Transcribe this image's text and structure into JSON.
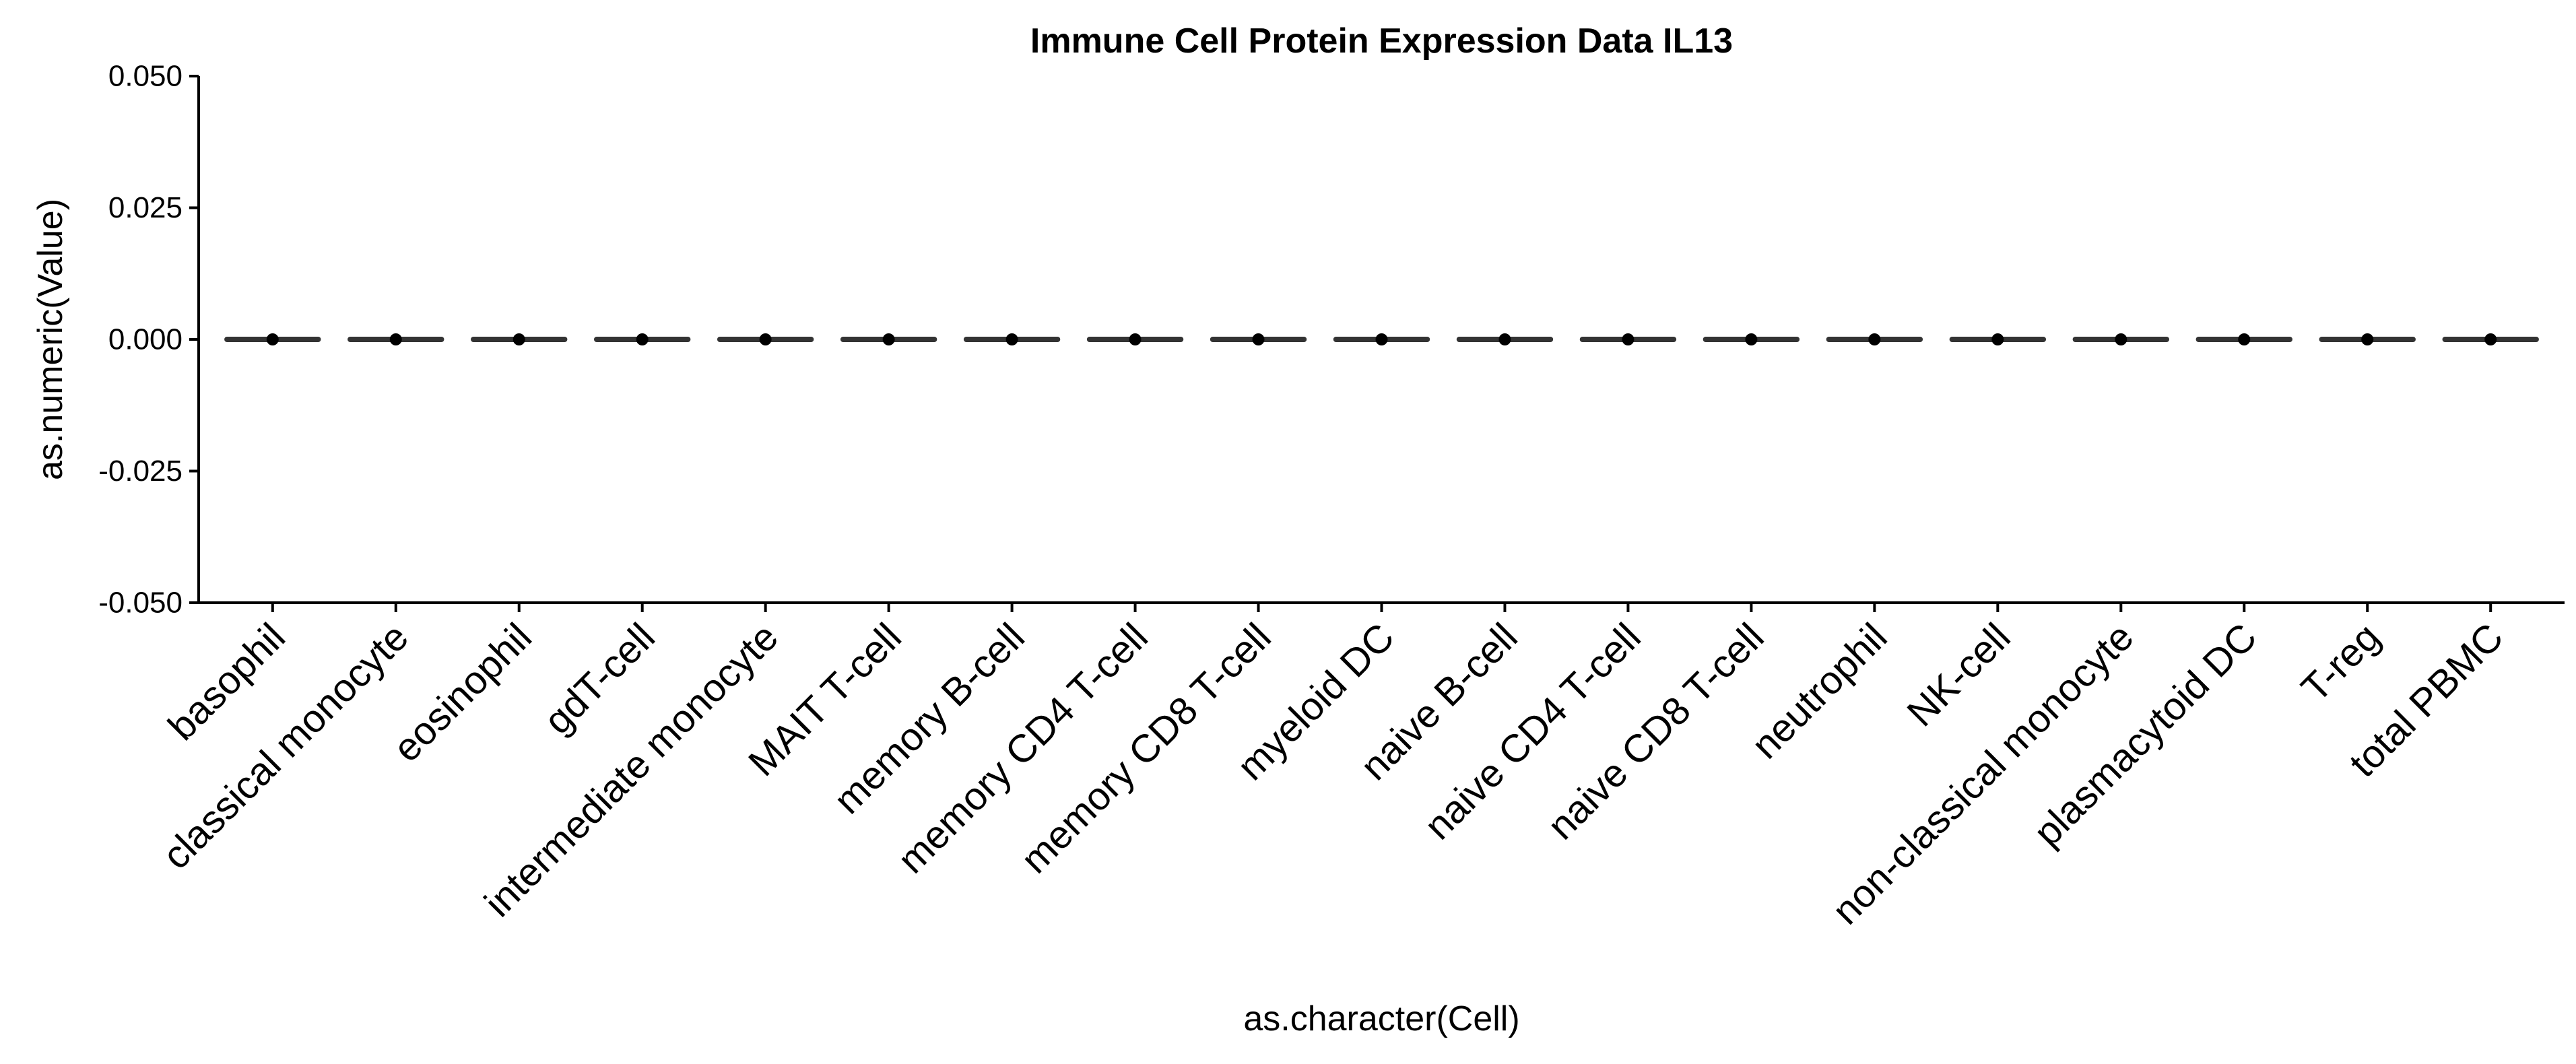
{
  "chart_data": {
    "type": "box",
    "title": "Immune Cell Protein Expression Data IL13",
    "xlabel": "as.character(Cell)",
    "ylabel": "as.numeric(Value)",
    "ylim": [
      -0.05,
      0.05
    ],
    "yticks": [
      -0.05,
      -0.025,
      0,
      0.025,
      0.05
    ],
    "ytick_labels": [
      "-0.050",
      "-0.025",
      "0.000",
      "0.025",
      "0.050"
    ],
    "categories": [
      "basophil",
      "classical monocyte",
      "eosinophil",
      "gdT-cell",
      "intermediate monocyte",
      "MAIT T-cell",
      "memory B-cell",
      "memory CD4 T-cell",
      "memory CD8 T-cell",
      "myeloid DC",
      "naive B-cell",
      "naive CD4 T-cell",
      "naive CD8 T-cell",
      "neutrophil",
      "NK-cell",
      "non-classical monocyte",
      "plasmacytoid DC",
      "T-reg",
      "total PBMC"
    ],
    "values": [
      0,
      0,
      0,
      0,
      0,
      0,
      0,
      0,
      0,
      0,
      0,
      0,
      0,
      0,
      0,
      0,
      0,
      0,
      0
    ],
    "grid": false,
    "legend": "none",
    "colors": {
      "box": "#333333",
      "point": "#000000",
      "axis": "#000000",
      "background": "#ffffff"
    }
  }
}
